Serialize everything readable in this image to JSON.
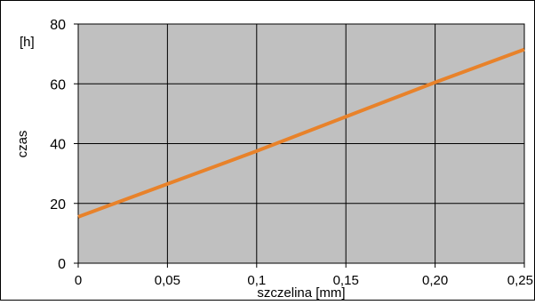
{
  "chart_data": {
    "type": "line",
    "xlabel": "szczelina [mm]",
    "ylabel": "czas",
    "yunit": "[h]",
    "x_ticks": [
      "0",
      "0,05",
      "0,1",
      "0,15",
      "0,20",
      "0,25"
    ],
    "y_ticks": [
      "0",
      "20",
      "40",
      "60",
      "80"
    ],
    "xlim": [
      0,
      0.25
    ],
    "ylim": [
      0,
      80
    ],
    "grid": true,
    "series": [
      {
        "x": [
          0,
          0.05,
          0.1,
          0.15,
          0.2,
          0.25
        ],
        "y": [
          15.5,
          26.5,
          37.5,
          49,
          60.5,
          71.5
        ]
      }
    ],
    "colors": {
      "plot_bg": "#c0c0c0",
      "line": "#e8822a",
      "grid": "#000000",
      "frame": "#000000"
    }
  }
}
